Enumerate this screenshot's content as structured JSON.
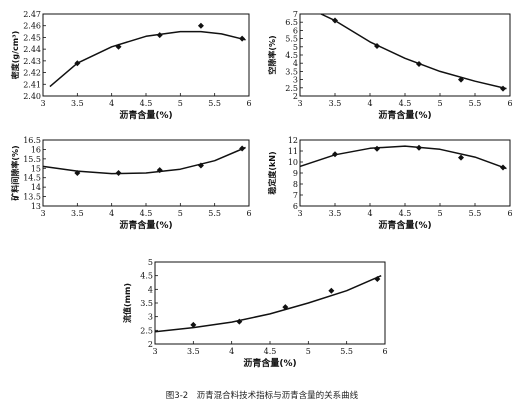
{
  "caption": "图3-2　沥青混合料技术指标与沥青含量的关系曲线",
  "chart_data": [
    {
      "type": "scatter",
      "xlabel": "沥青含量(%)",
      "ylabel": "密度(g/cm³)",
      "xlim": [
        3,
        6
      ],
      "ylim": [
        2.4,
        2.47
      ],
      "xticks": [
        "3",
        "3.5",
        "4",
        "4.5",
        "5",
        "5.5",
        "6"
      ],
      "yticks": [
        "2.40",
        "2.41",
        "2.42",
        "2.43",
        "2.44",
        "2.45",
        "2.46",
        "2.47"
      ],
      "points": [
        [
          3.5,
          2.428
        ],
        [
          4.1,
          2.442
        ],
        [
          4.7,
          2.452
        ],
        [
          5.3,
          2.46
        ],
        [
          5.9,
          2.449
        ]
      ],
      "fit": [
        [
          3.1,
          2.408
        ],
        [
          3.5,
          2.428
        ],
        [
          4.0,
          2.442
        ],
        [
          4.5,
          2.451
        ],
        [
          5.0,
          2.455
        ],
        [
          5.3,
          2.455
        ],
        [
          5.6,
          2.453
        ],
        [
          5.95,
          2.448
        ]
      ]
    },
    {
      "type": "scatter",
      "xlabel": "沥青含量(%)",
      "ylabel": "空隙率(%)",
      "xlim": [
        3,
        6
      ],
      "ylim": [
        2,
        7
      ],
      "xticks": [
        "3",
        "3.5",
        "4",
        "4.5",
        "5",
        "5.5",
        "6"
      ],
      "yticks": [
        "2",
        "2.5",
        "3",
        "3.5",
        "4",
        "4.5",
        "5",
        "5.5",
        "6",
        "6.5",
        "7"
      ],
      "points": [
        [
          3.5,
          6.6
        ],
        [
          4.1,
          5.05
        ],
        [
          4.7,
          3.95
        ],
        [
          5.3,
          3.0
        ],
        [
          5.9,
          2.45
        ]
      ],
      "fit": [
        [
          3.3,
          7.0
        ],
        [
          3.5,
          6.6
        ],
        [
          4.0,
          5.3
        ],
        [
          4.5,
          4.3
        ],
        [
          5.0,
          3.5
        ],
        [
          5.5,
          2.9
        ],
        [
          5.95,
          2.45
        ]
      ]
    },
    {
      "type": "scatter",
      "xlabel": "沥青含量(%)",
      "ylabel": "矿料间隙率(%)",
      "xlim": [
        3,
        6
      ],
      "ylim": [
        13,
        16.5
      ],
      "xticks": [
        "3",
        "3.5",
        "4",
        "4.5",
        "5",
        "5.5",
        "6"
      ],
      "yticks": [
        "13",
        "13.5",
        "14",
        "14.5",
        "15",
        "15.5",
        "16",
        "16.5"
      ],
      "points": [
        [
          3.5,
          14.75
        ],
        [
          4.1,
          14.75
        ],
        [
          4.7,
          14.9
        ],
        [
          5.3,
          15.15
        ],
        [
          5.9,
          16.05
        ]
      ],
      "fit": [
        [
          3.0,
          15.1
        ],
        [
          3.5,
          14.85
        ],
        [
          4.0,
          14.72
        ],
        [
          4.5,
          14.75
        ],
        [
          5.0,
          14.95
        ],
        [
          5.5,
          15.4
        ],
        [
          5.95,
          16.1
        ]
      ]
    },
    {
      "type": "scatter",
      "xlabel": "沥青含量(%)",
      "ylabel": "稳定度(kN)",
      "xlim": [
        3,
        6
      ],
      "ylim": [
        6,
        12
      ],
      "xticks": [
        "3",
        "3.5",
        "4",
        "4.5",
        "5",
        "5.5",
        "6"
      ],
      "yticks": [
        "6",
        "7",
        "8",
        "9",
        "10",
        "11",
        "12"
      ],
      "points": [
        [
          3.5,
          10.7
        ],
        [
          4.1,
          11.2
        ],
        [
          4.7,
          11.3
        ],
        [
          5.3,
          10.4
        ],
        [
          5.9,
          9.5
        ]
      ],
      "fit": [
        [
          3.0,
          9.6
        ],
        [
          3.5,
          10.65
        ],
        [
          4.0,
          11.25
        ],
        [
          4.5,
          11.45
        ],
        [
          5.0,
          11.15
        ],
        [
          5.5,
          10.45
        ],
        [
          5.95,
          9.4
        ]
      ]
    },
    {
      "type": "scatter",
      "xlabel": "沥青含量(%)",
      "ylabel": "流值(mm)",
      "xlim": [
        3,
        6
      ],
      "ylim": [
        2,
        5
      ],
      "xticks": [
        "3",
        "3.5",
        "4",
        "4.5",
        "5",
        "5.5",
        "6"
      ],
      "yticks": [
        "2",
        "2.5",
        "3",
        "3.5",
        "4",
        "4.5",
        "5"
      ],
      "points": [
        [
          3.5,
          2.7
        ],
        [
          4.1,
          2.82
        ],
        [
          4.7,
          3.35
        ],
        [
          5.3,
          3.95
        ],
        [
          5.9,
          4.38
        ]
      ],
      "fit": [
        [
          3.0,
          2.45
        ],
        [
          3.5,
          2.6
        ],
        [
          4.0,
          2.8
        ],
        [
          4.5,
          3.1
        ],
        [
          5.0,
          3.5
        ],
        [
          5.5,
          3.95
        ],
        [
          5.95,
          4.5
        ]
      ]
    }
  ]
}
